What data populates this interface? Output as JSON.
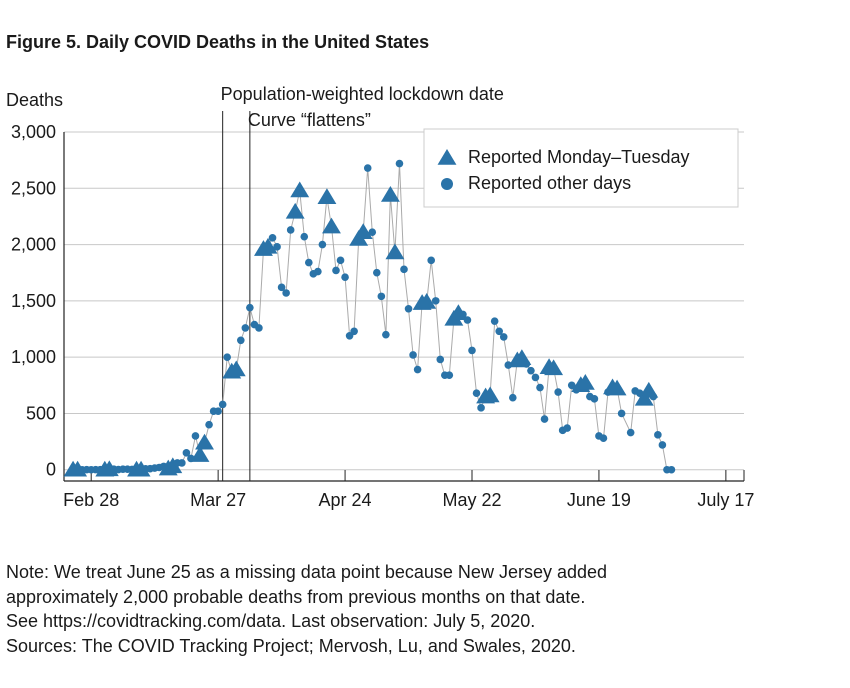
{
  "figure": {
    "title": "Figure 5. Daily COVID Deaths in the United States"
  },
  "notes": [
    "Note: We treat June 25 as a missing data point because New Jersey added",
    "approximately 2,000 probable deaths from previous months on that date.",
    "See https://covidtracking.com/data. Last observation: July 5, 2020.",
    "Sources:  The COVID Tracking Project; Mervosh, Lu, and Swales, 2020."
  ],
  "colors": {
    "marker": "#2a73a8",
    "line": "#aaaaaa",
    "grid": "#c8c8c8",
    "axis": "#222222"
  },
  "chart_data": {
    "type": "scatter",
    "ylabel": "Deaths",
    "xlim": [
      "2020-02-22",
      "2020-07-21"
    ],
    "ylim": [
      -100,
      3000
    ],
    "yticks": [
      0,
      500,
      1000,
      1500,
      2000,
      2500,
      3000
    ],
    "ytick_labels": [
      "0",
      "500",
      "1,000",
      "1,500",
      "2,000",
      "2,500",
      "3,000"
    ],
    "xticks": [
      "2020-02-28",
      "2020-03-27",
      "2020-04-24",
      "2020-05-22",
      "2020-06-19",
      "2020-07-17"
    ],
    "xtick_labels": [
      "Feb 28",
      "Mar 27",
      "Apr 24",
      "May 22",
      "June 19",
      "July 17"
    ],
    "grid": true,
    "legend_position": "top-right",
    "annotations": [
      {
        "date": "2020-03-28",
        "label": "Population-weighted lockdown date"
      },
      {
        "date": "2020-04-03",
        "label": "Curve “flattens”"
      }
    ],
    "series": [
      {
        "name": "Reported Monday–Tuesday",
        "marker": "triangle",
        "x": [
          "2020-02-24",
          "2020-02-25",
          "2020-03-02",
          "2020-03-03",
          "2020-03-09",
          "2020-03-10",
          "2020-03-16",
          "2020-03-17",
          "2020-03-23",
          "2020-03-24",
          "2020-03-30",
          "2020-03-31",
          "2020-04-06",
          "2020-04-07",
          "2020-04-13",
          "2020-04-14",
          "2020-04-20",
          "2020-04-21",
          "2020-04-27",
          "2020-04-28",
          "2020-05-04",
          "2020-05-05",
          "2020-05-11",
          "2020-05-12",
          "2020-05-18",
          "2020-05-19",
          "2020-05-25",
          "2020-05-26",
          "2020-06-01",
          "2020-06-02",
          "2020-06-08",
          "2020-06-09",
          "2020-06-15",
          "2020-06-16",
          "2020-06-22",
          "2020-06-23",
          "2020-06-29",
          "2020-06-30"
        ],
        "y": [
          0,
          0,
          0,
          3,
          0,
          0,
          10,
          30,
          130,
          240,
          870,
          890,
          1960,
          1980,
          2290,
          2480,
          2420,
          2160,
          2050,
          2110,
          2440,
          1930,
          1480,
          1490,
          1340,
          1390,
          650,
          660,
          970,
          990,
          910,
          900,
          750,
          770,
          730,
          720,
          630,
          700
        ]
      },
      {
        "name": "Reported other days",
        "marker": "circle",
        "x": [
          "2020-02-26",
          "2020-02-27",
          "2020-02-28",
          "2020-02-29",
          "2020-03-01",
          "2020-03-04",
          "2020-03-05",
          "2020-03-06",
          "2020-03-07",
          "2020-03-08",
          "2020-03-11",
          "2020-03-12",
          "2020-03-13",
          "2020-03-14",
          "2020-03-15",
          "2020-03-18",
          "2020-03-19",
          "2020-03-20",
          "2020-03-21",
          "2020-03-22",
          "2020-03-25",
          "2020-03-26",
          "2020-03-27",
          "2020-03-28",
          "2020-03-29",
          "2020-04-01",
          "2020-04-02",
          "2020-04-03",
          "2020-04-04",
          "2020-04-05",
          "2020-04-08",
          "2020-04-09",
          "2020-04-10",
          "2020-04-11",
          "2020-04-12",
          "2020-04-15",
          "2020-04-16",
          "2020-04-17",
          "2020-04-18",
          "2020-04-19",
          "2020-04-22",
          "2020-04-23",
          "2020-04-24",
          "2020-04-25",
          "2020-04-26",
          "2020-04-29",
          "2020-04-30",
          "2020-05-01",
          "2020-05-02",
          "2020-05-03",
          "2020-05-06",
          "2020-05-07",
          "2020-05-08",
          "2020-05-09",
          "2020-05-10",
          "2020-05-13",
          "2020-05-14",
          "2020-05-15",
          "2020-05-16",
          "2020-05-17",
          "2020-05-20",
          "2020-05-21",
          "2020-05-22",
          "2020-05-23",
          "2020-05-24",
          "2020-05-27",
          "2020-05-28",
          "2020-05-29",
          "2020-05-30",
          "2020-05-31",
          "2020-06-03",
          "2020-06-04",
          "2020-06-05",
          "2020-06-06",
          "2020-06-07",
          "2020-06-10",
          "2020-06-11",
          "2020-06-12",
          "2020-06-13",
          "2020-06-14",
          "2020-06-17",
          "2020-06-18",
          "2020-06-19",
          "2020-06-20",
          "2020-06-21",
          "2020-06-24",
          "2020-06-26",
          "2020-06-27",
          "2020-06-28",
          "2020-07-01",
          "2020-07-02",
          "2020-07-03",
          "2020-07-04",
          "2020-07-05"
        ],
        "y": [
          0,
          1,
          0,
          1,
          1,
          5,
          2,
          5,
          5,
          3,
          8,
          9,
          15,
          20,
          30,
          60,
          60,
          150,
          100,
          300,
          400,
          520,
          520,
          580,
          1000,
          1150,
          1260,
          1440,
          1290,
          1260,
          2060,
          1980,
          1620,
          1570,
          2130,
          2070,
          1840,
          1740,
          1760,
          2000,
          1770,
          1860,
          1710,
          1190,
          1230,
          2680,
          2110,
          1750,
          1540,
          1200,
          2720,
          1780,
          1430,
          1020,
          890,
          1860,
          1500,
          980,
          840,
          840,
          1380,
          1330,
          1060,
          680,
          550,
          1320,
          1230,
          1180,
          930,
          640,
          940,
          880,
          820,
          730,
          450,
          690,
          350,
          370,
          750,
          710,
          650,
          630,
          300,
          280,
          690,
          500,
          330,
          700,
          680,
          650,
          310,
          220,
          0,
          0
        ]
      }
    ]
  }
}
